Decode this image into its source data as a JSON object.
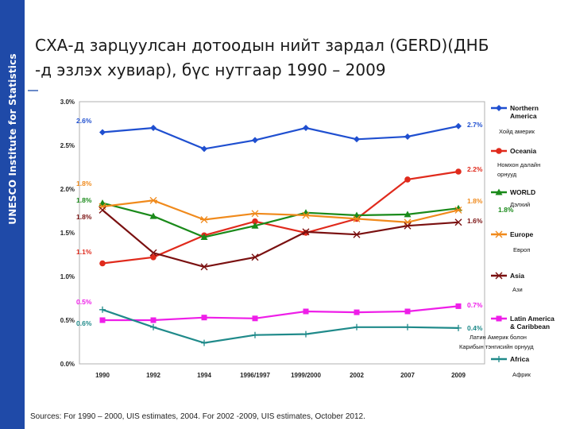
{
  "slide": {
    "sidebar_label": "UNESCO Institute for Statistics",
    "title_line1": "СХА-д зарцуулсан дотоодын нийт зардал (GERD)(ДНБ",
    "title_line2": "-д эзлэх хувиар), бүс нутгаар 1990 – 2009",
    "sources": "Sources: For 1990 – 2000, UIS estimates, 2004. For 2002 -2009, UIS estimates, October 2012."
  },
  "chart_data": {
    "type": "line",
    "title": "СХА-д зарцуулсан дотоодын нийт зардал (GERD)(ДНБ -д эзлэх хувиар), бүс нутгаар 1990 – 2009",
    "xlabel": "",
    "ylabel": "",
    "categories": [
      "1990",
      "1992",
      "1994",
      "1996/1997",
      "1999/2000",
      "2002",
      "2007",
      "2009"
    ],
    "yticks": [
      "0.0%",
      "0.5%",
      "1.0%",
      "1.5%",
      "2.0%",
      "2.5%",
      "3.0%"
    ],
    "ylim": [
      0,
      3.0
    ],
    "grid": false,
    "legend_position": "right",
    "series": [
      {
        "name": "Northern America",
        "label_mn": "Хойд америк",
        "color": "#1f4fd0",
        "marker": "diamond",
        "values": [
          2.65,
          2.7,
          2.46,
          2.56,
          2.7,
          2.57,
          2.6,
          2.72
        ],
        "start_label": "2.6%",
        "end_label": "2.7%"
      },
      {
        "name": "Oceania",
        "label_mn": "Номхон далайн орнууд",
        "color": "#e02a1c",
        "marker": "circle",
        "values": [
          1.15,
          1.22,
          1.47,
          1.63,
          1.5,
          1.66,
          2.11,
          2.2
        ],
        "start_label": "1.1%",
        "end_label": "2.2%"
      },
      {
        "name": "WORLD",
        "label_mn": "Дэлхий",
        "color": "#1a8a1a",
        "marker": "triangle",
        "values": [
          1.84,
          1.69,
          1.45,
          1.58,
          1.73,
          1.7,
          1.71,
          1.78
        ],
        "start_label": "1.8%",
        "end_label": "1.8%"
      },
      {
        "name": "Europe",
        "label_mn": "Европ",
        "color": "#f08a1c",
        "marker": "star",
        "values": [
          1.8,
          1.87,
          1.65,
          1.72,
          1.7,
          1.66,
          1.62,
          1.76
        ],
        "start_label": "1.8%",
        "end_label": "1.8%"
      },
      {
        "name": "Asia",
        "label_mn": "Ази",
        "color": "#7a1010",
        "marker": "x",
        "values": [
          1.76,
          1.27,
          1.11,
          1.22,
          1.51,
          1.48,
          1.58,
          1.62
        ],
        "start_label": "1.8%",
        "end_label": "1.6%"
      },
      {
        "name": "Latin America & Caribbean",
        "label_mn": "Латин Америк болон Карибын тэнгисийн орнууд",
        "color": "#ee1ee8",
        "marker": "square",
        "values": [
          0.5,
          0.5,
          0.53,
          0.52,
          0.6,
          0.59,
          0.6,
          0.66
        ],
        "start_label": "0.5%",
        "end_label": "0.7%"
      },
      {
        "name": "Africa",
        "label_mn": "Африк",
        "color": "#1f8a8a",
        "marker": "plus",
        "values": [
          0.62,
          0.42,
          0.24,
          0.33,
          0.34,
          0.42,
          0.42,
          0.41
        ],
        "start_label": "0.6%",
        "end_label": "0.4%"
      }
    ]
  }
}
